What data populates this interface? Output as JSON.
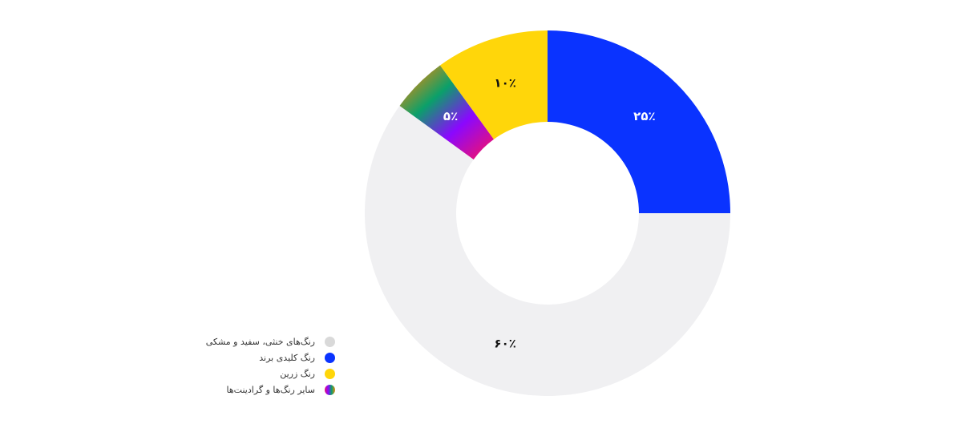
{
  "chart_data": {
    "type": "pie",
    "donut": true,
    "start": "top",
    "direction": "clockwise",
    "slices": [
      {
        "label": "رنگ کلیدی برند",
        "value": 25,
        "display": "۲۵٪",
        "color": "#0a33ff",
        "label_color": "#ffffff"
      },
      {
        "label": "رنگ‌های خنثی، سفید و مشکی",
        "value": 60,
        "display": "۶۰٪",
        "color": "#f0f0f2",
        "legend_color": "#d9d9d9",
        "label_color": "#111111"
      },
      {
        "label": "سایر رنگ‌ها و گرادینت‌ها",
        "value": 5,
        "display": "۵٪",
        "color": "gradient",
        "gradient": [
          "#e8107a",
          "#8a08ff",
          "#0aa06a",
          "#e8880a"
        ],
        "label_color": "#ffffff"
      },
      {
        "label": "رنگ زرین",
        "value": 10,
        "display": "۱۰٪",
        "color": "#ffd60a",
        "label_color": "#111111"
      }
    ],
    "legend": {
      "placement": "bottom-left",
      "order": [
        1,
        0,
        3,
        2
      ]
    }
  }
}
